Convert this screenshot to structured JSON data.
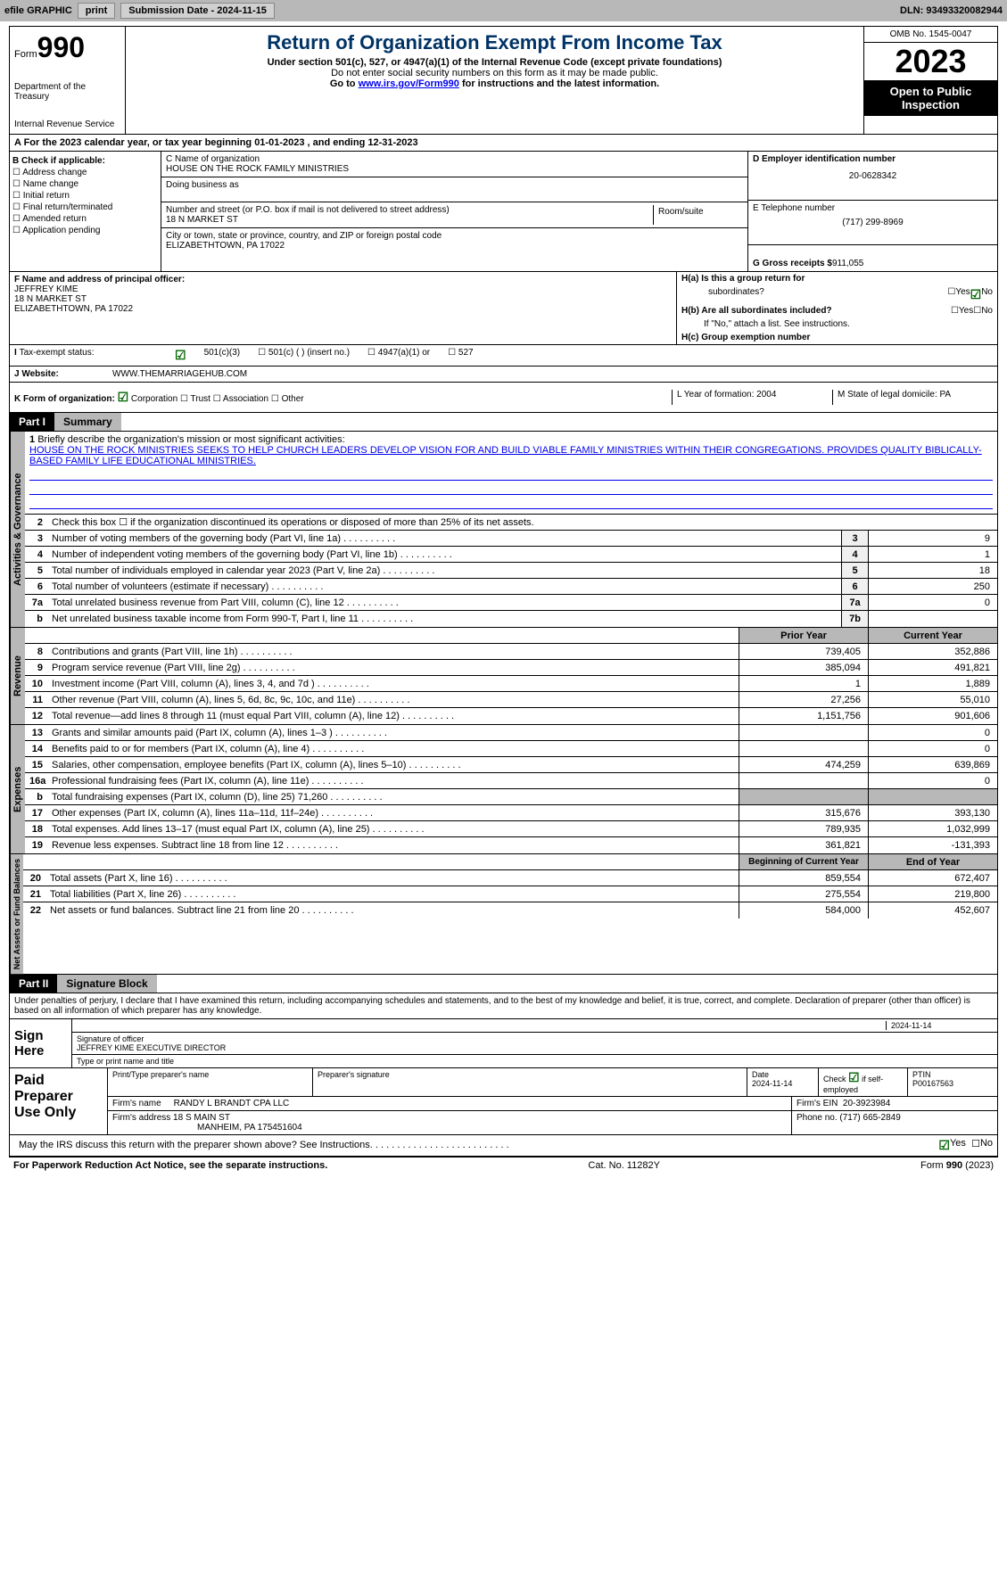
{
  "header": {
    "efile_label": "efile GRAPHIC",
    "print_btn": "print",
    "sub_date_label": "Submission Date - 2024-11-15",
    "dln_label": "DLN: 93493320082944"
  },
  "title_box": {
    "form_word": "Form",
    "num": "990",
    "dept": "Department of the Treasury",
    "irs": "Internal Revenue Service"
  },
  "center": {
    "main": "Return of Organization Exempt From Income Tax",
    "sub1": "Under section 501(c), 527, or 4947(a)(1) of the Internal Revenue Code (except private foundations)",
    "sub2": "Do not enter social security numbers on this form as it may be made public.",
    "sub3_pre": "Go to ",
    "sub3_link": "www.irs.gov/Form990",
    "sub3_post": " for instructions and the latest information."
  },
  "right": {
    "omb": "OMB No. 1545-0047",
    "year": "2023",
    "open": "Open to Public Inspection"
  },
  "row_a": "A For the 2023 calendar year, or tax year beginning 01-01-2023    , and ending 12-31-2023",
  "col_b": {
    "header": "B Check if applicable:",
    "items": [
      "Address change",
      "Name change",
      "Initial return",
      "Final return/terminated",
      "Amended return",
      "Application pending"
    ]
  },
  "col_c": {
    "name_label": "C Name of organization",
    "name": "HOUSE ON THE ROCK FAMILY MINISTRIES",
    "dba": "Doing business as",
    "addr_label": "Number and street (or P.O. box if mail is not delivered to street address)",
    "addr": "18 N MARKET ST",
    "room": "Room/suite",
    "city_label": "City or town, state or province, country, and ZIP or foreign postal code",
    "city": "ELIZABETHTOWN, PA  17022"
  },
  "col_d": {
    "ein_label": "D Employer identification number",
    "ein": "20-0628342",
    "phone_label": "E Telephone number",
    "phone": "(717) 299-8969",
    "gross_label": "G Gross receipts $",
    "gross": "911,055"
  },
  "col_f": {
    "label": "F Name and address of principal officer:",
    "name": "JEFFREY KIME",
    "addr1": "18 N MARKET ST",
    "addr2": "ELIZABETHTOWN, PA  17022"
  },
  "col_h": {
    "ha_label": "H(a) Is this a group return for",
    "sub": "subordinates?",
    "hb_label": "H(b) Are all subordinates included?",
    "hb_note": "If \"No,\" attach a list. See instructions.",
    "hc_label": "H(c) Group exemption number"
  },
  "tax_status": "Tax-exempt status:",
  "status_opts": [
    "501(c)(3)",
    "501(c) (  ) (insert no.)",
    "4947(a)(1) or",
    "527"
  ],
  "website_label": "Website:",
  "website": "WWW.THEMARRIAGEHUB.COM",
  "k_label": "K Form of organization:",
  "k_opts": [
    "Corporation",
    "Trust",
    "Association",
    "Other"
  ],
  "l_label": "L Year of formation: 2004",
  "m_label": "M State of legal domicile: PA",
  "part1": {
    "hdr": "Part I",
    "title": "Summary"
  },
  "summary": {
    "q1_label": "Briefly describe the organization's mission or most significant activities:",
    "q1_text": "HOUSE ON THE ROCK MINISTRIES SEEKS TO HELP CHURCH LEADERS DEVELOP VISION FOR AND BUILD VIABLE FAMILY MINISTRIES WITHIN THEIR CONGREGATIONS. PROVIDES QUALITY BIBLICALLY-BASED FAMILY LIFE EDUCATIONAL MINISTRIES.",
    "q2": "Check this box ☐ if the organization discontinued its operations or disposed of more than 25% of its net assets.",
    "rows_ag": [
      {
        "n": "3",
        "label": "Number of voting members of the governing body (Part VI, line 1a)",
        "box": "3",
        "val": "9"
      },
      {
        "n": "4",
        "label": "Number of independent voting members of the governing body (Part VI, line 1b)",
        "box": "4",
        "val": "1"
      },
      {
        "n": "5",
        "label": "Total number of individuals employed in calendar year 2023 (Part V, line 2a)",
        "box": "5",
        "val": "18"
      },
      {
        "n": "6",
        "label": "Total number of volunteers (estimate if necessary)",
        "box": "6",
        "val": "250"
      },
      {
        "n": "7a",
        "label": "Total unrelated business revenue from Part VIII, column (C), line 12",
        "box": "7a",
        "val": "0"
      },
      {
        "n": "b",
        "label": "Net unrelated business taxable income from Form 990-T, Part I, line 11",
        "box": "7b",
        "val": ""
      }
    ]
  },
  "section_labels": {
    "ag": "Activities & Governance",
    "rev": "Revenue",
    "exp": "Expenses",
    "nab": "Net Assets or Fund Balances"
  },
  "col_hdrs": {
    "prior": "Prior Year",
    "current": "Current Year",
    "begin": "Beginning of Current Year",
    "end": "End of Year"
  },
  "revenue": [
    {
      "n": "8",
      "label": "Contributions and grants (Part VIII, line 1h)",
      "p": "739,405",
      "c": "352,886"
    },
    {
      "n": "9",
      "label": "Program service revenue (Part VIII, line 2g)",
      "p": "385,094",
      "c": "491,821"
    },
    {
      "n": "10",
      "label": "Investment income (Part VIII, column (A), lines 3, 4, and 7d )",
      "p": "1",
      "c": "1,889"
    },
    {
      "n": "11",
      "label": "Other revenue (Part VIII, column (A), lines 5, 6d, 8c, 9c, 10c, and 11e)",
      "p": "27,256",
      "c": "55,010"
    },
    {
      "n": "12",
      "label": "Total revenue—add lines 8 through 11 (must equal Part VIII, column (A), line 12)",
      "p": "1,151,756",
      "c": "901,606"
    }
  ],
  "expenses": [
    {
      "n": "13",
      "label": "Grants and similar amounts paid (Part IX, column (A), lines 1–3 )",
      "p": "",
      "c": "0"
    },
    {
      "n": "14",
      "label": "Benefits paid to or for members (Part IX, column (A), line 4)",
      "p": "",
      "c": "0"
    },
    {
      "n": "15",
      "label": "Salaries, other compensation, employee benefits (Part IX, column (A), lines 5–10)",
      "p": "474,259",
      "c": "639,869"
    },
    {
      "n": "16a",
      "label": "Professional fundraising fees (Part IX, column (A), line 11e)",
      "p": "",
      "c": "0"
    },
    {
      "n": "b",
      "label": "Total fundraising expenses (Part IX, column (D), line 25) 71,260",
      "p": "GRAY",
      "c": "GRAY"
    },
    {
      "n": "17",
      "label": "Other expenses (Part IX, column (A), lines 11a–11d, 11f–24e)",
      "p": "315,676",
      "c": "393,130"
    },
    {
      "n": "18",
      "label": "Total expenses. Add lines 13–17 (must equal Part IX, column (A), line 25)",
      "p": "789,935",
      "c": "1,032,999"
    },
    {
      "n": "19",
      "label": "Revenue less expenses. Subtract line 18 from line 12",
      "p": "361,821",
      "c": "-131,393"
    }
  ],
  "netassets": [
    {
      "n": "20",
      "label": "Total assets (Part X, line 16)",
      "p": "859,554",
      "c": "672,407"
    },
    {
      "n": "21",
      "label": "Total liabilities (Part X, line 26)",
      "p": "275,554",
      "c": "219,800"
    },
    {
      "n": "22",
      "label": "Net assets or fund balances. Subtract line 21 from line 20",
      "p": "584,000",
      "c": "452,607"
    }
  ],
  "part2": {
    "hdr": "Part II",
    "title": "Signature Block"
  },
  "penalty": "Under penalties of perjury, I declare that I have examined this return, including accompanying schedules and statements, and to the best of my knowledge and belief, it is true, correct, and complete. Declaration of preparer (other than officer) is based on all information of which preparer has any knowledge.",
  "sign": {
    "here": "Sign Here",
    "date1": "2024-11-14",
    "sig_label": "Signature of officer",
    "officer": "JEFFREY KIME  EXECUTIVE DIRECTOR",
    "type_label": "Type or print name and title",
    "date_label": "Date"
  },
  "paid": {
    "label": "Paid Preparer Use Only",
    "prep_name_label": "Print/Type preparer's name",
    "prep_sig_label": "Preparer's signature",
    "date_label": "Date",
    "date": "2024-11-14",
    "check_label": "Check ☑ if self-employed",
    "ptin_label": "PTIN",
    "ptin": "P00167563",
    "firm_name_label": "Firm's name",
    "firm_name": "RANDY L BRANDT CPA LLC",
    "firm_ein_label": "Firm's EIN",
    "firm_ein": "20-3923984",
    "firm_addr_label": "Firm's address",
    "firm_addr1": "18 S MAIN ST",
    "firm_addr2": "MANHEIM, PA  175451604",
    "phone_label": "Phone no.",
    "phone": "(717) 665-2849"
  },
  "discuss": "May the IRS discuss this return with the preparer shown above? See Instructions.",
  "footer": {
    "left": "For Paperwork Reduction Act Notice, see the separate instructions.",
    "mid": "Cat. No. 11282Y",
    "right": "Form 990 (2023)"
  },
  "yes": "Yes",
  "no": "No"
}
